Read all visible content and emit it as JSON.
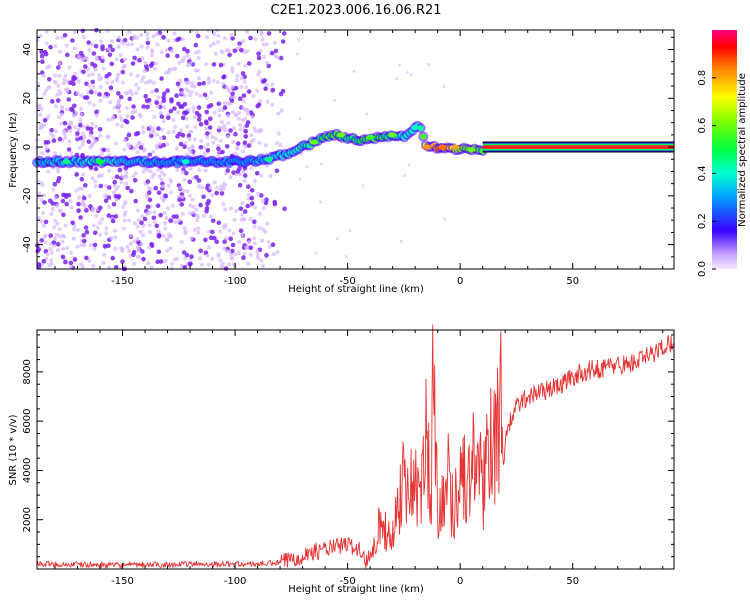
{
  "title": "C2E1.2023.006.16.06.R21",
  "chart_data": [
    {
      "type": "heatmap",
      "xlabel": "Height of straight line (km)",
      "ylabel": "Frequency (Hz)",
      "xlim": [
        -188,
        95
      ],
      "ylim": [
        -50,
        48
      ],
      "xticks": [
        -150,
        -100,
        -50,
        0,
        50
      ],
      "yticks": [
        -40,
        -20,
        0,
        20,
        40
      ],
      "colorbar": {
        "label": "Normalized spectral amplitude",
        "range": [
          0.0,
          1.0
        ],
        "ticks": [
          0.0,
          0.2,
          0.4,
          0.6,
          0.8
        ],
        "colormap": "rainbow"
      },
      "trace": {
        "x": [
          -188,
          -170,
          -160,
          -150,
          -125,
          -105,
          -95,
          -85,
          -75,
          -65,
          -60,
          -55,
          -50,
          -45,
          -40,
          -35,
          -30,
          -25,
          -20,
          -18,
          -15,
          -10,
          -5,
          0,
          10,
          95
        ],
        "y": [
          -6,
          -6,
          -6,
          -6,
          -6,
          -6,
          -6,
          -5,
          -2,
          2,
          4,
          5,
          4,
          3,
          3,
          4,
          5,
          4,
          8,
          9,
          0,
          0,
          0,
          -1,
          -1,
          0
        ],
        "amplitude": [
          0.35,
          0.35,
          0.45,
          0.35,
          0.3,
          0.3,
          0.3,
          0.35,
          0.4,
          0.45,
          0.5,
          0.55,
          0.45,
          0.5,
          0.55,
          0.5,
          0.45,
          0.4,
          0.4,
          0.4,
          0.7,
          0.85,
          0.8,
          0.6,
          0.55,
          1.0
        ]
      }
    },
    {
      "type": "line",
      "xlabel": "Height of straight line (km)",
      "ylabel": "SNR (10 * v/v)",
      "xlim": [
        -188,
        95
      ],
      "ylim": [
        0,
        9700
      ],
      "xticks": [
        -150,
        -100,
        -50,
        0,
        50
      ],
      "yticks": [
        2000,
        4000,
        6000,
        8000
      ],
      "series": [
        {
          "color": "#e63333",
          "x": [
            -188,
            -150,
            -120,
            -100,
            -90,
            -80,
            -75,
            -70,
            -65,
            -60,
            -55,
            -50,
            -45,
            -42,
            -40,
            -38,
            -35,
            -32,
            -30,
            -28,
            -25,
            -22,
            -20,
            -18,
            -15,
            -13,
            -12,
            -10,
            -8,
            -5,
            -3,
            0,
            3,
            5,
            8,
            10,
            12,
            15,
            18,
            20,
            25,
            30,
            35,
            40,
            45,
            50,
            55,
            60,
            65,
            70,
            75,
            80,
            85,
            90,
            95
          ],
          "y": [
            200,
            150,
            200,
            200,
            200,
            250,
            400,
            550,
            700,
            800,
            900,
            1000,
            800,
            300,
            600,
            1200,
            2000,
            1200,
            1500,
            2500,
            3800,
            3200,
            4200,
            2200,
            5600,
            2800,
            7800,
            2500,
            3000,
            3800,
            2200,
            4200,
            3300,
            3900,
            5200,
            2500,
            5700,
            5400,
            6300,
            5400,
            6600,
            7000,
            7200,
            7300,
            7500,
            7800,
            8000,
            8100,
            8200,
            8300,
            8300,
            8500,
            8700,
            9000,
            9300
          ]
        }
      ]
    }
  ],
  "colors": {
    "snr_line": "#e63333",
    "scatter": "#8a2be2"
  }
}
